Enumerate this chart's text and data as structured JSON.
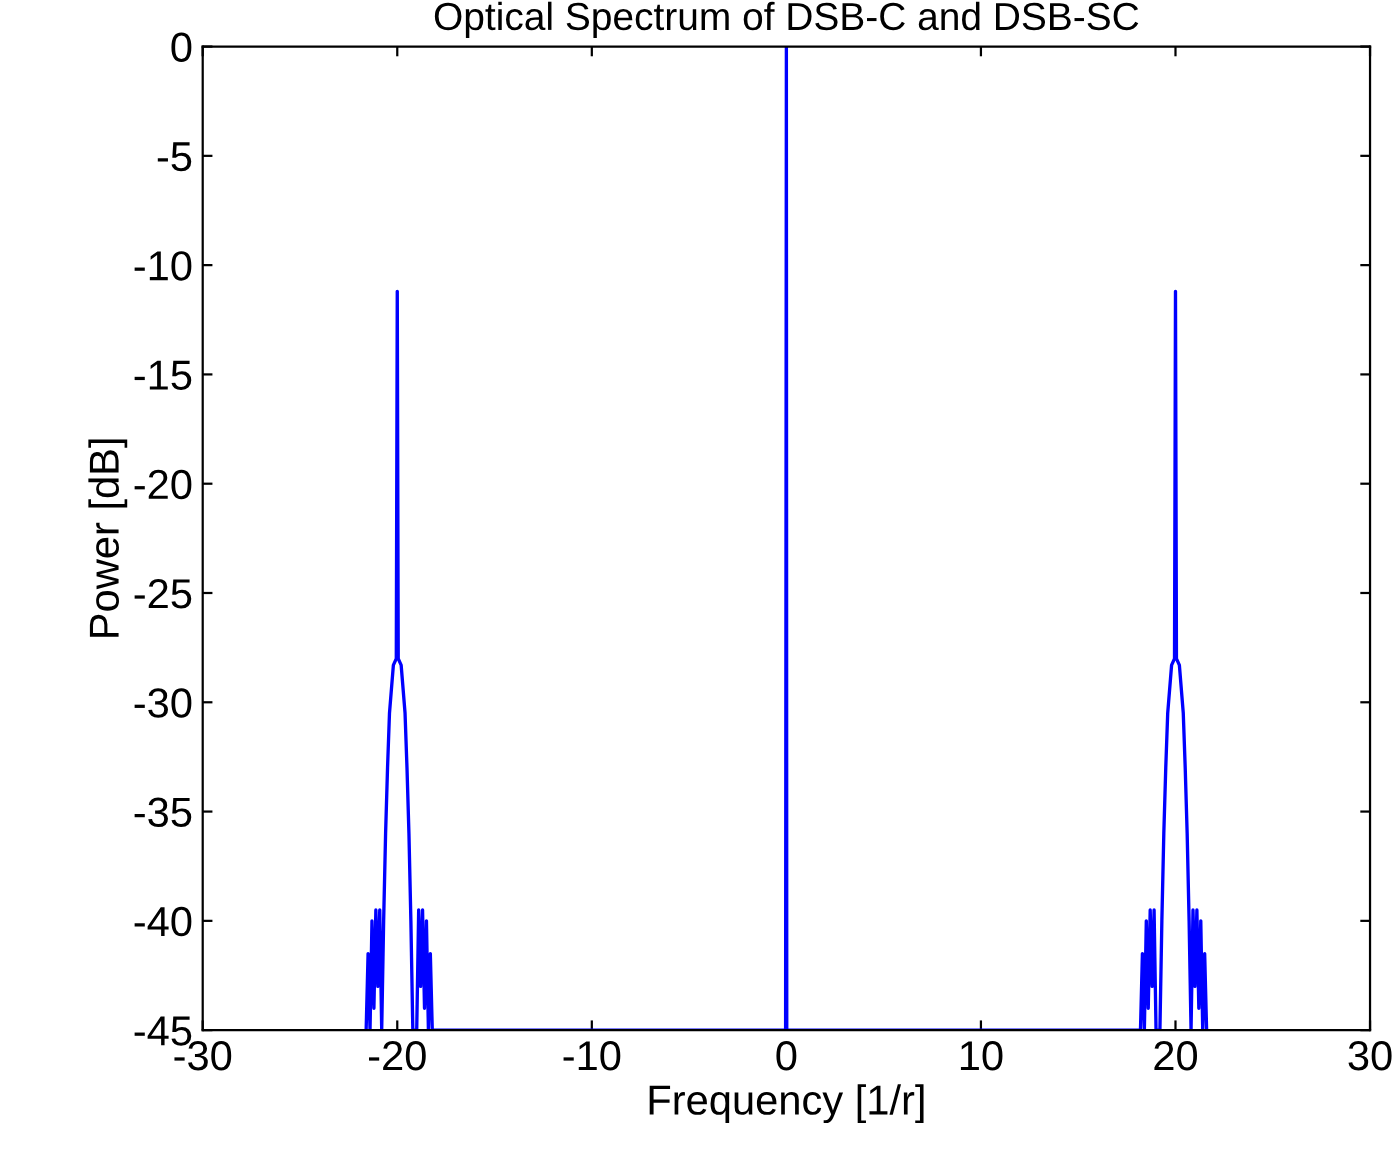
{
  "chart_data": {
    "type": "line",
    "title": "Optical Spectrum of DSB-C and DSB-SC",
    "xlabel": "Frequency [1/r]",
    "ylabel": "Power [dB]",
    "xlim": [
      -30,
      30
    ],
    "xticks": [
      -30,
      -20,
      -10,
      0,
      10,
      20,
      30
    ],
    "ylim": [
      -45,
      0
    ],
    "yticks": [
      0,
      -5,
      -10,
      -15,
      -20,
      -25,
      -30,
      -35,
      -40,
      -45
    ],
    "grid": false,
    "legend": false,
    "series": [
      {
        "color": "#0000ff",
        "x": [
          -21.6,
          -21.5,
          -21.4,
          -21.3,
          -21.2,
          -21.1,
          -21.0,
          -20.9,
          -20.8,
          -20.7,
          -20.6,
          -20.5,
          -20.4,
          -20.2,
          -20.05,
          -20.0,
          -19.95,
          -19.8,
          -19.6,
          -19.5,
          -19.4,
          -19.3,
          -19.2,
          -19.0,
          -18.9,
          -18.8,
          -18.7,
          -18.6,
          -18.5,
          -18.4,
          -18.3,
          -18.2,
          -0.04,
          -0.02,
          0.0,
          0.02,
          18.2,
          18.3,
          18.4,
          18.5,
          18.6,
          18.7,
          18.8,
          18.9,
          19.0,
          19.2,
          19.3,
          19.4,
          19.5,
          19.6,
          19.8,
          19.95,
          20.0,
          20.05,
          20.2,
          20.4,
          20.5,
          20.6,
          20.7,
          20.8,
          20.9,
          21.0,
          21.1,
          21.2,
          21.3,
          21.4,
          21.5,
          21.6
        ],
        "values": [
          -45,
          -41.5,
          -45,
          -40,
          -44,
          -39.5,
          -43,
          -39.5,
          -45,
          -40,
          -36,
          -33,
          -30.5,
          -28.3,
          -28,
          -11.2,
          -28,
          -28.3,
          -30.5,
          -33,
          -36,
          -40,
          -45,
          -45,
          -39.5,
          -43,
          -39.5,
          -44,
          -40,
          -45,
          -41.5,
          -45,
          -45,
          -22.7,
          0,
          -45,
          -45,
          -41.5,
          -45,
          -40,
          -44,
          -39.5,
          -43,
          -39.5,
          -45,
          -45,
          -40,
          -36,
          -33,
          -30.5,
          -28.3,
          -28,
          -11.2,
          -28,
          -28.3,
          -30.5,
          -33,
          -36,
          -40,
          -45,
          -39.5,
          -43,
          -39.5,
          -44,
          -40,
          -45,
          -41.5,
          -45
        ]
      }
    ]
  }
}
